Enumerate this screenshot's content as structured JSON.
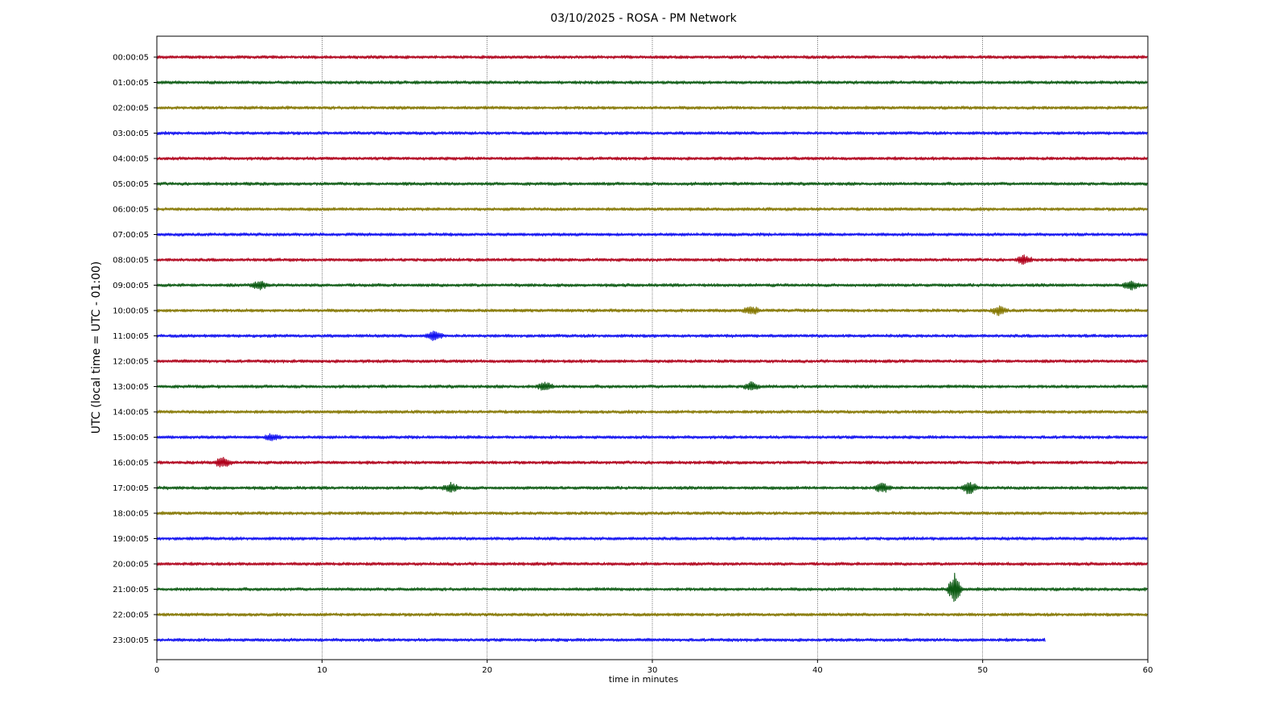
{
  "chart_data": {
    "type": "line",
    "title": "03/10/2025 - ROSA - PM Network",
    "xlabel": "time in minutes",
    "ylabel": "UTC (local time = UTC - 01:00)",
    "xlim": [
      0,
      60
    ],
    "xticks": [
      0,
      10,
      20,
      30,
      40,
      50,
      60
    ],
    "grid": "vertical dotted lines at x ticks",
    "colors_cycle": [
      "#b0001b",
      "#0b5a12",
      "#857700",
      "#1010f0"
    ],
    "series": [
      {
        "label": "00:00:05",
        "color": "#b0001b",
        "x_end": 60,
        "events": []
      },
      {
        "label": "01:00:05",
        "color": "#0b5a12",
        "x_end": 60,
        "events": []
      },
      {
        "label": "02:00:05",
        "color": "#857700",
        "x_end": 60,
        "events": []
      },
      {
        "label": "03:00:05",
        "color": "#1010f0",
        "x_end": 60,
        "events": []
      },
      {
        "label": "04:00:05",
        "color": "#b0001b",
        "x_end": 60,
        "events": []
      },
      {
        "label": "05:00:05",
        "color": "#0b5a12",
        "x_end": 60,
        "events": []
      },
      {
        "label": "06:00:05",
        "color": "#857700",
        "x_end": 60,
        "events": []
      },
      {
        "label": "07:00:05",
        "color": "#1010f0",
        "x_end": 60,
        "events": []
      },
      {
        "label": "08:00:05",
        "color": "#b0001b",
        "x_end": 60,
        "events": [
          {
            "x": 52.5,
            "amp": 0.3
          }
        ]
      },
      {
        "label": "09:00:05",
        "color": "#0b5a12",
        "x_end": 60,
        "events": [
          {
            "x": 6.2,
            "amp": 0.3
          },
          {
            "x": 59.0,
            "amp": 0.3
          }
        ]
      },
      {
        "label": "10:00:05",
        "color": "#857700",
        "x_end": 60,
        "events": [
          {
            "x": 36.0,
            "amp": 0.3
          },
          {
            "x": 51.0,
            "amp": 0.3
          }
        ]
      },
      {
        "label": "11:00:05",
        "color": "#1010f0",
        "x_end": 60,
        "events": [
          {
            "x": 16.8,
            "amp": 0.35
          }
        ]
      },
      {
        "label": "12:00:05",
        "color": "#b0001b",
        "x_end": 60,
        "events": []
      },
      {
        "label": "13:00:05",
        "color": "#0b5a12",
        "x_end": 60,
        "events": [
          {
            "x": 23.5,
            "amp": 0.3
          },
          {
            "x": 36.0,
            "amp": 0.3
          }
        ]
      },
      {
        "label": "14:00:05",
        "color": "#857700",
        "x_end": 60,
        "events": []
      },
      {
        "label": "15:00:05",
        "color": "#1010f0",
        "x_end": 60,
        "events": [
          {
            "x": 7.0,
            "amp": 0.25
          }
        ]
      },
      {
        "label": "16:00:05",
        "color": "#b0001b",
        "x_end": 60,
        "events": [
          {
            "x": 4.0,
            "amp": 0.4
          }
        ]
      },
      {
        "label": "17:00:05",
        "color": "#0b5a12",
        "x_end": 60,
        "events": [
          {
            "x": 17.8,
            "amp": 0.35
          },
          {
            "x": 43.9,
            "amp": 0.35
          },
          {
            "x": 49.2,
            "amp": 0.45
          }
        ]
      },
      {
        "label": "18:00:05",
        "color": "#857700",
        "x_end": 60,
        "events": []
      },
      {
        "label": "19:00:05",
        "color": "#1010f0",
        "x_end": 60,
        "events": []
      },
      {
        "label": "20:00:05",
        "color": "#b0001b",
        "x_end": 60,
        "events": []
      },
      {
        "label": "21:00:05",
        "color": "#0b5a12",
        "x_end": 60,
        "events": [
          {
            "x": 48.3,
            "amp": 1.2
          }
        ]
      },
      {
        "label": "22:00:05",
        "color": "#857700",
        "x_end": 60,
        "events": []
      },
      {
        "label": "23:00:05",
        "color": "#1010f0",
        "x_end": 53.8,
        "events": []
      }
    ]
  }
}
